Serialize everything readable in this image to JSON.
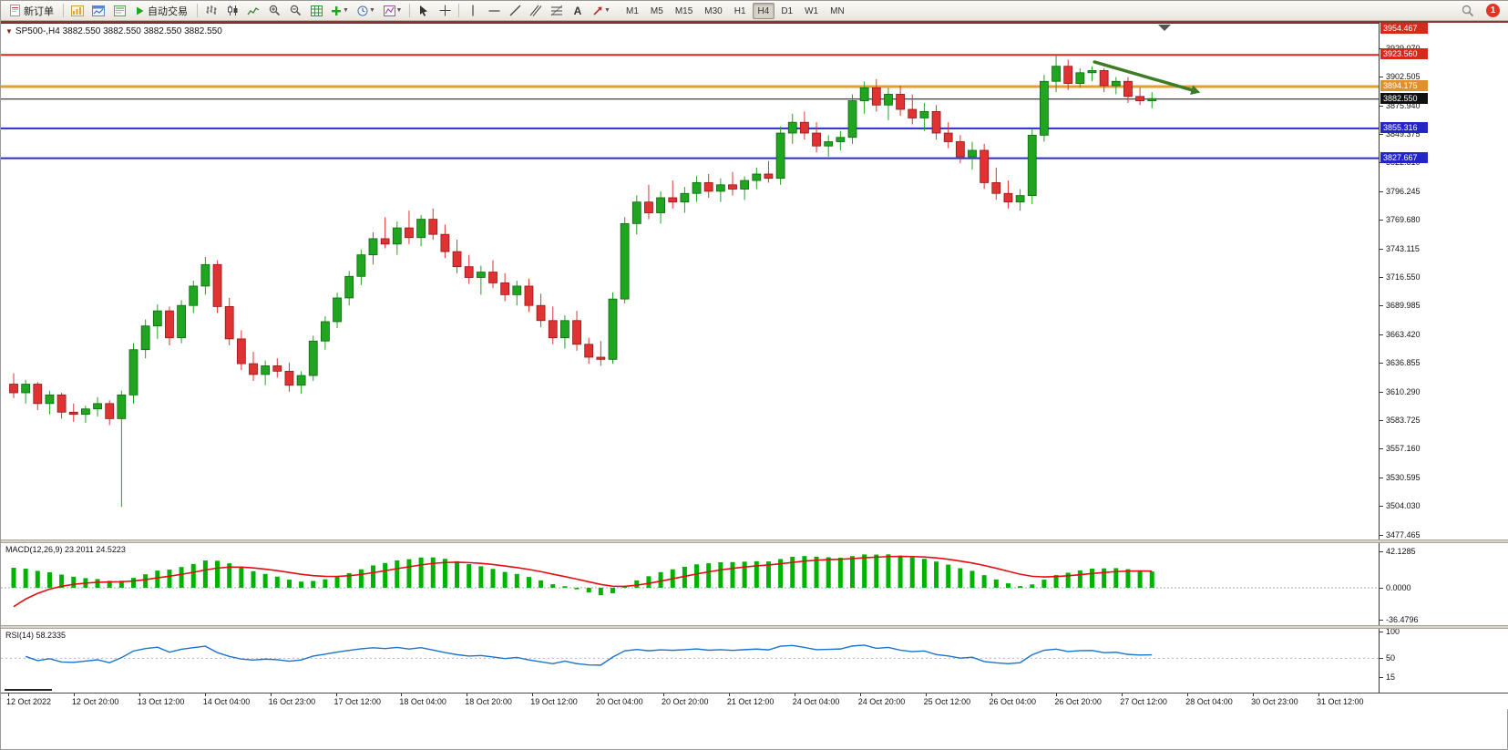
{
  "toolbar": {
    "new_order": "新订单",
    "auto_trading": "自动交易",
    "timeframes": [
      "M1",
      "M5",
      "M15",
      "M30",
      "H1",
      "H4",
      "D1",
      "W1",
      "MN"
    ],
    "active_timeframe": "H4",
    "notification_count": "1",
    "icon_names": [
      "new-order-icon",
      "new-chart-icon",
      "profiles-icon",
      "market-watch-icon",
      "autotrading-play-icon",
      "bar-chart-icon",
      "candlestick-chart-icon",
      "line-chart-icon",
      "zoom-in-icon",
      "zoom-out-icon",
      "indicators-grid-icon",
      "add-indicator-icon",
      "periods-clock-icon",
      "templates-icon",
      "cursor-icon",
      "crosshair-icon",
      "vline-icon",
      "hline-icon",
      "trendline-icon",
      "channel-icon",
      "fibonacci-icon",
      "text-tool-icon",
      "arrows-tool-icon",
      "search-icon"
    ]
  },
  "chart": {
    "title": "SP500-,H4 3882.550 3882.550 3882.550 3882.550",
    "symbol": "SP500-",
    "period": "H4",
    "price_ticks": [
      "3929.070",
      "3902.505",
      "3875.940",
      "3849.375",
      "3822.810",
      "3796.245",
      "3769.680",
      "3743.115",
      "3716.550",
      "3689.985",
      "3663.420",
      "3636.855",
      "3610.290",
      "3583.725",
      "3557.160",
      "3530.595",
      "3504.030",
      "3477.465"
    ],
    "hlines": [
      {
        "label": "3954.467",
        "price": 3954.467,
        "color": "#e0271b",
        "badge": "#d6281c",
        "width": 2
      },
      {
        "label": "3923.560",
        "price": 3923.56,
        "color": "#e0271b",
        "badge": "#d6281c",
        "width": 2
      },
      {
        "label": "3894.175",
        "price": 3894.175,
        "color": "#e89b35",
        "badge": "#e1912c",
        "width": 3
      },
      {
        "label": "3882.550",
        "price": 3882.55,
        "color": "#111111",
        "badge": "#111111",
        "width": 1
      },
      {
        "label": "3855.316",
        "price": 3855.316,
        "color": "#2b2bd5",
        "badge": "#2424c8",
        "width": 2
      },
      {
        "label": "3827.667",
        "price": 3827.667,
        "color": "#2b2bd5",
        "badge": "#2424c8",
        "width": 2
      }
    ],
    "time_labels": [
      "12 Oct 2022",
      "12 Oct 20:00",
      "13 Oct 12:00",
      "14 Oct 04:00",
      "16 Oct 23:00",
      "17 Oct 12:00",
      "18 Oct 04:00",
      "18 Oct 20:00",
      "19 Oct 12:00",
      "20 Oct 04:00",
      "20 Oct 20:00",
      "21 Oct 12:00",
      "24 Oct 04:00",
      "24 Oct 20:00",
      "25 Oct 12:00",
      "26 Oct 04:00",
      "26 Oct 20:00",
      "27 Oct 12:00",
      "28 Oct 04:00",
      "30 Oct 23:00",
      "31 Oct 12:00"
    ],
    "macd_label": "MACD(12,26,9) 23.2011 24.5223",
    "macd_scale": [
      "42.1285",
      "0.0000",
      "-36.4796"
    ],
    "rsi_label": "RSI(14) 58.2335",
    "rsi_scale": [
      "100",
      "50",
      "15"
    ]
  },
  "chart_data": {
    "type": "candlestick",
    "symbol": "SP500-",
    "timeframe": "H4",
    "current_ohlc": [
      3882.55,
      3882.55,
      3882.55,
      3882.55
    ],
    "y_range": [
      3473.0,
      3952.5
    ],
    "colors": {
      "up": "#1fa51f",
      "down": "#e03232",
      "macd_histogram": "#00b200",
      "macd_signal": "#e01010",
      "rsi_line": "#1874cd"
    },
    "candles": [
      [
        3618,
        3628,
        3605,
        3610
      ],
      [
        3610,
        3622,
        3600,
        3618
      ],
      [
        3618,
        3620,
        3594,
        3600
      ],
      [
        3600,
        3612,
        3590,
        3608
      ],
      [
        3608,
        3610,
        3586,
        3592
      ],
      [
        3592,
        3600,
        3583,
        3590
      ],
      [
        3590,
        3598,
        3582,
        3595
      ],
      [
        3595,
        3606,
        3588,
        3600
      ],
      [
        3600,
        3603,
        3580,
        3586
      ],
      [
        3586,
        3612,
        3504,
        3608
      ],
      [
        3608,
        3656,
        3600,
        3650
      ],
      [
        3650,
        3678,
        3642,
        3672
      ],
      [
        3672,
        3692,
        3660,
        3686
      ],
      [
        3686,
        3690,
        3654,
        3661
      ],
      [
        3661,
        3696,
        3656,
        3691
      ],
      [
        3691,
        3714,
        3684,
        3709
      ],
      [
        3709,
        3736,
        3701,
        3729
      ],
      [
        3729,
        3733,
        3684,
        3690
      ],
      [
        3690,
        3698,
        3654,
        3660
      ],
      [
        3660,
        3668,
        3631,
        3637
      ],
      [
        3637,
        3648,
        3621,
        3627
      ],
      [
        3627,
        3640,
        3617,
        3635
      ],
      [
        3635,
        3642,
        3624,
        3630
      ],
      [
        3630,
        3638,
        3611,
        3617
      ],
      [
        3617,
        3630,
        3609,
        3626
      ],
      [
        3626,
        3663,
        3621,
        3658
      ],
      [
        3658,
        3681,
        3650,
        3676
      ],
      [
        3676,
        3703,
        3670,
        3698
      ],
      [
        3698,
        3723,
        3691,
        3718
      ],
      [
        3718,
        3743,
        3710,
        3738
      ],
      [
        3738,
        3759,
        3729,
        3753
      ],
      [
        3753,
        3773,
        3744,
        3748
      ],
      [
        3748,
        3769,
        3738,
        3763
      ],
      [
        3763,
        3779,
        3748,
        3754
      ],
      [
        3754,
        3775,
        3746,
        3771
      ],
      [
        3771,
        3781,
        3752,
        3757
      ],
      [
        3757,
        3766,
        3735,
        3741
      ],
      [
        3741,
        3752,
        3721,
        3727
      ],
      [
        3727,
        3738,
        3711,
        3717
      ],
      [
        3717,
        3728,
        3701,
        3722
      ],
      [
        3722,
        3733,
        3707,
        3712
      ],
      [
        3712,
        3721,
        3695,
        3701
      ],
      [
        3701,
        3714,
        3691,
        3709
      ],
      [
        3709,
        3716,
        3685,
        3691
      ],
      [
        3691,
        3702,
        3671,
        3677
      ],
      [
        3677,
        3690,
        3655,
        3661
      ],
      [
        3661,
        3682,
        3651,
        3677
      ],
      [
        3677,
        3686,
        3649,
        3655
      ],
      [
        3655,
        3661,
        3637,
        3643
      ],
      [
        3643,
        3658,
        3635,
        3641
      ],
      [
        3641,
        3703,
        3637,
        3697
      ],
      [
        3697,
        3773,
        3693,
        3767
      ],
      [
        3767,
        3793,
        3757,
        3787
      ],
      [
        3787,
        3803,
        3771,
        3777
      ],
      [
        3777,
        3797,
        3767,
        3791
      ],
      [
        3791,
        3807,
        3781,
        3787
      ],
      [
        3787,
        3801,
        3777,
        3795
      ],
      [
        3795,
        3811,
        3787,
        3805
      ],
      [
        3805,
        3813,
        3791,
        3797
      ],
      [
        3797,
        3809,
        3787,
        3803
      ],
      [
        3803,
        3815,
        3793,
        3799
      ],
      [
        3799,
        3811,
        3789,
        3807
      ],
      [
        3807,
        3819,
        3799,
        3813
      ],
      [
        3813,
        3825,
        3805,
        3809
      ],
      [
        3809,
        3857,
        3803,
        3851
      ],
      [
        3851,
        3869,
        3841,
        3861
      ],
      [
        3861,
        3871,
        3845,
        3851
      ],
      [
        3851,
        3861,
        3833,
        3839
      ],
      [
        3839,
        3849,
        3829,
        3843
      ],
      [
        3843,
        3853,
        3835,
        3847
      ],
      [
        3847,
        3887,
        3841,
        3881
      ],
      [
        3881,
        3899,
        3869,
        3893
      ],
      [
        3893,
        3901,
        3871,
        3877
      ],
      [
        3877,
        3893,
        3863,
        3887
      ],
      [
        3887,
        3895,
        3867,
        3873
      ],
      [
        3873,
        3887,
        3859,
        3865
      ],
      [
        3865,
        3879,
        3853,
        3871
      ],
      [
        3871,
        3877,
        3845,
        3851
      ],
      [
        3851,
        3861,
        3837,
        3843
      ],
      [
        3843,
        3849,
        3823,
        3829
      ],
      [
        3829,
        3843,
        3817,
        3835
      ],
      [
        3835,
        3841,
        3799,
        3805
      ],
      [
        3805,
        3819,
        3789,
        3795
      ],
      [
        3795,
        3807,
        3781,
        3787
      ],
      [
        3787,
        3799,
        3779,
        3793
      ],
      [
        3793,
        3855,
        3785,
        3849
      ],
      [
        3849,
        3905,
        3843,
        3899
      ],
      [
        3899,
        3923,
        3889,
        3913
      ],
      [
        3913,
        3919,
        3891,
        3897
      ],
      [
        3897,
        3911,
        3893,
        3907
      ],
      [
        3907,
        3913,
        3899,
        3909
      ],
      [
        3909,
        3911,
        3889,
        3895
      ],
      [
        3895,
        3903,
        3887,
        3899
      ],
      [
        3899,
        3903,
        3879,
        3885
      ],
      [
        3885,
        3893,
        3877,
        3881
      ],
      [
        3881,
        3889,
        3874,
        3883
      ]
    ],
    "indicators": [
      {
        "type": "MACD",
        "params": [
          12,
          26,
          9
        ],
        "current": [
          23.2011,
          24.5223
        ],
        "scale_range": [
          -36.4796,
          42.1285
        ]
      },
      {
        "type": "RSI",
        "params": [
          14
        ],
        "current": 58.2335,
        "scale": [
          100,
          50,
          15
        ]
      }
    ],
    "annotations": [
      {
        "type": "arrow",
        "from_bar": 90.2,
        "from_price": 3917,
        "to_bar": 98.3,
        "to_price": 3891,
        "color": "#3e7d28",
        "note": "green down-sloping trend arrow at top right"
      }
    ]
  }
}
